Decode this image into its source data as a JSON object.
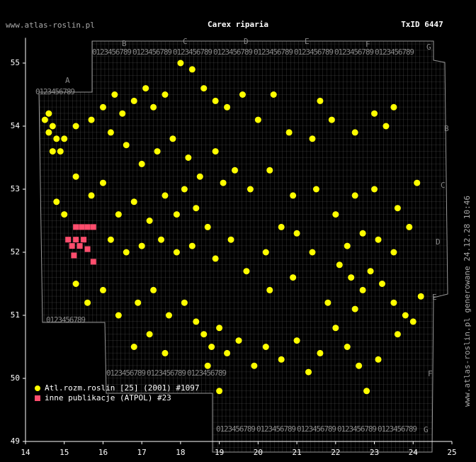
{
  "chart_data": {
    "type": "scatter",
    "title": "Carex riparia",
    "site": "www.atlas-roslin.pl",
    "taxon_id": "TxID 6447",
    "footer": "www.atlas-roslin.pl generowane 24.12.28 10:46",
    "grid_letters": [
      "A",
      "B",
      "C",
      "D",
      "E",
      "F",
      "G"
    ],
    "grid_digits": "0123456789",
    "xlim": [
      14,
      25
    ],
    "xticks": [
      14,
      15,
      16,
      17,
      18,
      19,
      20,
      21,
      22,
      23,
      24,
      25
    ],
    "ylim": [
      49,
      55.4
    ],
    "yticks": [
      49,
      50,
      51,
      52,
      53,
      54,
      55
    ],
    "series": [
      {
        "name": "Atl.rozm.roslin [25] (2001) #1097",
        "color": "#ffff00",
        "marker": "circle",
        "x": [
          14.5,
          14.6,
          14.7,
          14.8,
          14.7,
          14.9,
          15.0,
          14.6,
          15.3,
          15.7,
          16.0,
          16.3,
          16.5,
          16.8,
          17.1,
          17.3,
          17.6,
          18.0,
          18.3,
          18.6,
          18.9,
          19.2,
          19.6,
          20.0,
          20.4,
          20.8,
          21.4,
          21.9,
          21.6,
          22.5,
          23.0,
          23.3,
          23.5,
          16.2,
          16.6,
          17.0,
          17.4,
          17.8,
          18.2,
          18.5,
          18.9,
          19.1,
          19.4,
          19.8,
          20.3,
          20.9,
          21.5,
          14.8,
          15.0,
          15.3,
          15.7,
          16.0,
          16.4,
          16.8,
          17.2,
          17.6,
          17.9,
          18.1,
          18.4,
          18.7,
          16.2,
          16.6,
          17.0,
          17.5,
          17.9,
          18.3,
          18.9,
          19.3,
          19.7,
          20.2,
          20.6,
          21.0,
          21.4,
          20.9,
          20.3,
          15.3,
          15.6,
          16.0,
          16.4,
          16.9,
          17.3,
          17.7,
          17.2,
          16.8,
          17.6,
          18.1,
          18.4,
          18.6,
          18.8,
          19.0,
          19.2,
          18.7,
          19.5,
          19.9,
          20.2,
          20.6,
          21.0,
          21.3,
          21.6,
          22.0,
          22.3,
          22.6,
          23.1,
          23.6,
          24.0,
          22.8,
          19.0,
          22.1,
          22.4,
          22.7,
          22.9,
          23.2,
          23.5,
          23.8,
          22.3,
          22.7,
          23.1,
          23.5,
          23.9,
          22.0,
          22.5,
          23.0,
          23.6,
          24.1,
          21.8,
          22.5,
          24.2
        ],
        "values": [
          54.1,
          53.9,
          54.0,
          53.8,
          53.6,
          53.6,
          53.8,
          54.2,
          54.0,
          54.1,
          54.3,
          54.5,
          54.2,
          54.4,
          54.6,
          54.3,
          54.5,
          55.0,
          54.9,
          54.6,
          54.4,
          54.3,
          54.5,
          54.1,
          54.5,
          53.9,
          53.8,
          54.1,
          54.4,
          53.9,
          54.2,
          54.0,
          54.3,
          53.9,
          53.7,
          53.4,
          53.6,
          53.8,
          53.5,
          53.2,
          53.6,
          53.1,
          53.3,
          53.0,
          53.3,
          52.9,
          53.0,
          52.8,
          52.6,
          53.2,
          52.9,
          53.1,
          52.6,
          52.8,
          52.5,
          52.9,
          52.6,
          53.0,
          52.7,
          52.4,
          52.2,
          52.0,
          52.1,
          52.2,
          52.0,
          52.1,
          51.9,
          52.2,
          51.7,
          52.0,
          52.4,
          52.3,
          52.0,
          51.6,
          51.4,
          51.5,
          51.2,
          51.4,
          51.0,
          51.2,
          51.4,
          51.0,
          50.7,
          50.5,
          50.4,
          51.2,
          50.9,
          50.7,
          50.5,
          50.8,
          50.4,
          50.2,
          50.6,
          50.2,
          50.5,
          50.3,
          50.6,
          50.1,
          50.4,
          50.8,
          50.5,
          50.2,
          50.3,
          50.7,
          50.9,
          49.8,
          49.8,
          51.8,
          51.6,
          51.4,
          51.7,
          51.5,
          51.2,
          51.0,
          52.1,
          52.3,
          52.2,
          52.0,
          52.4,
          52.6,
          52.9,
          53.0,
          52.7,
          53.1,
          51.2,
          51.1,
          51.3
        ]
      },
      {
        "name": "inne publikacje (ATPOL) #23",
        "color": "#ff4d6d",
        "marker": "square",
        "x": [
          15.3,
          15.45,
          15.6,
          15.75,
          15.1,
          15.3,
          15.5,
          15.2,
          15.4,
          15.6,
          15.25,
          15.75
        ],
        "values": [
          52.4,
          52.4,
          52.4,
          52.4,
          52.2,
          52.2,
          52.2,
          52.1,
          52.1,
          52.05,
          51.95,
          51.85
        ]
      }
    ]
  }
}
